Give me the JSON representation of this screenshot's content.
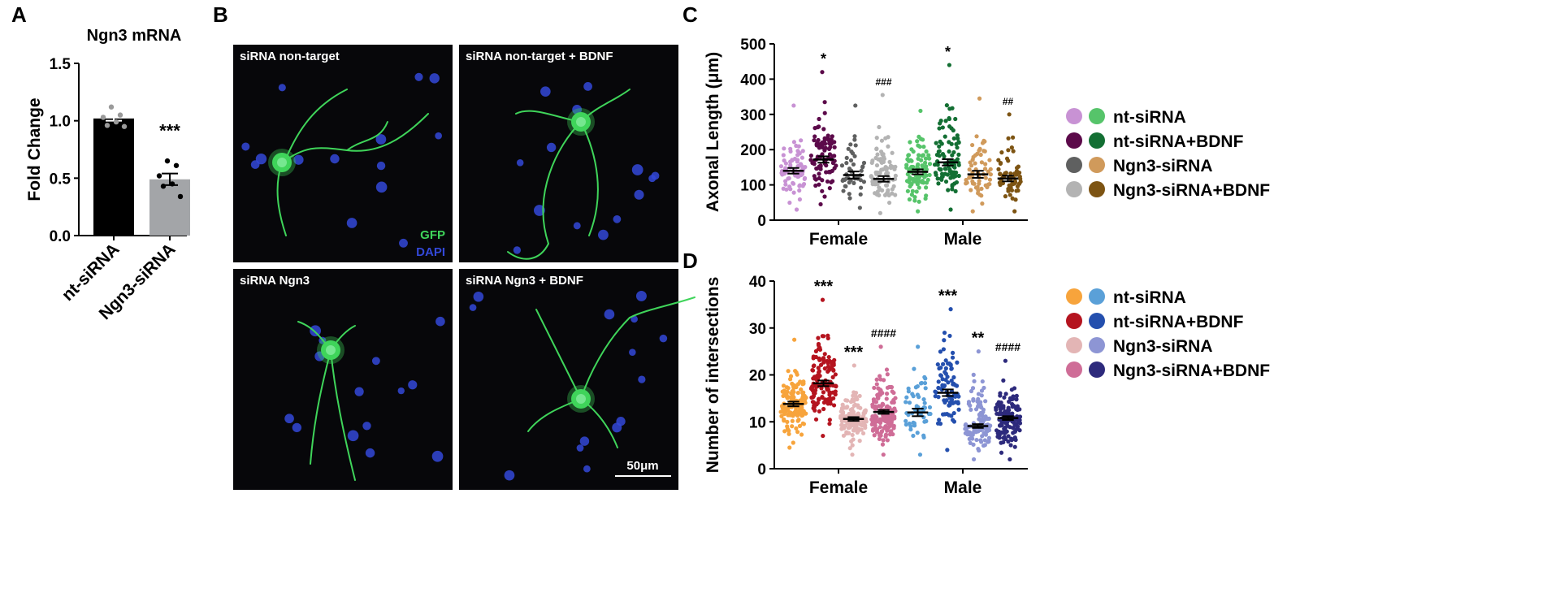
{
  "panels": {
    "a": "A",
    "b": "B",
    "c": "C",
    "d": "D"
  },
  "micrographs": {
    "tiles": [
      {
        "label": "siRNA non-target"
      },
      {
        "label": "siRNA non-target + BDNF"
      },
      {
        "label": "siRNA Ngn3"
      },
      {
        "label": "siRNA Ngn3 + BDNF"
      }
    ],
    "stain_gfp": "GFP",
    "stain_dapi": "DAPI",
    "scale_bar": "50μm",
    "colors": {
      "gfp": "#3fd45a",
      "dapi": "#3348d8",
      "background": "#07070a"
    }
  },
  "chart_data": [
    {
      "type": "bar",
      "title": "Ngn3 mRNA",
      "ylabel": "Fold Change",
      "categories": [
        "nt-siRNA",
        "Ngn3-siRNA"
      ],
      "values": [
        1.02,
        0.49
      ],
      "sem": [
        0.02,
        0.05
      ],
      "ylim": [
        0,
        1.5
      ],
      "yticks": [
        "0.0",
        "0.5",
        "1.0",
        "1.5"
      ],
      "points": [
        [
          1.12,
          1.05,
          1.03,
          0.99,
          0.96,
          0.95
        ],
        [
          0.65,
          0.61,
          0.52,
          0.45,
          0.43,
          0.34
        ]
      ],
      "annotations": [
        "",
        "***"
      ],
      "colors": [
        "#000000",
        "#a3a5a8"
      ]
    },
    {
      "type": "scatter",
      "ylabel": "Axonal  Length (μm)",
      "groups": [
        "Female",
        "Male"
      ],
      "ylim": [
        0,
        500
      ],
      "yticks": [
        "0",
        "100",
        "200",
        "300",
        "400",
        "500"
      ],
      "legend": [
        "nt-siRNA",
        "nt-siRNA+BDNF",
        "Ngn3-siRNA",
        "Ngn3-siRNA+BDNF"
      ],
      "series": [
        {
          "group": "Female",
          "mean": 140,
          "sem": 8,
          "max": 325,
          "min": 30,
          "n": 80,
          "color": "#c892d4",
          "annotation": ""
        },
        {
          "group": "Female",
          "mean": 172,
          "sem": 9,
          "max": 420,
          "min": 45,
          "n": 90,
          "color": "#5c0a4a",
          "annotation": "*"
        },
        {
          "group": "Female",
          "mean": 128,
          "sem": 10,
          "max": 325,
          "min": 35,
          "n": 45,
          "color": "#5f6060",
          "annotation": ""
        },
        {
          "group": "Female",
          "mean": 117,
          "sem": 8,
          "max": 355,
          "min": 20,
          "n": 85,
          "color": "#b3b3b3",
          "annotation": "###"
        },
        {
          "group": "Male",
          "mean": 137,
          "sem": 7,
          "max": 310,
          "min": 25,
          "n": 95,
          "color": "#56c46a",
          "annotation": ""
        },
        {
          "group": "Male",
          "mean": 164,
          "sem": 9,
          "max": 440,
          "min": 30,
          "n": 95,
          "color": "#136f33",
          "annotation": "*"
        },
        {
          "group": "Male",
          "mean": 130,
          "sem": 10,
          "max": 345,
          "min": 25,
          "n": 60,
          "color": "#d09a5b",
          "annotation": ""
        },
        {
          "group": "Male",
          "mean": 118,
          "sem": 8,
          "max": 300,
          "min": 25,
          "n": 60,
          "color": "#7d5413",
          "annotation": "##"
        }
      ]
    },
    {
      "type": "scatter",
      "ylabel": "Number of intersections",
      "groups": [
        "Female",
        "Male"
      ],
      "ylim": [
        0,
        40
      ],
      "yticks": [
        "0",
        "10",
        "20",
        "30",
        "40"
      ],
      "legend": [
        "nt-siRNA",
        "nt-siRNA+BDNF",
        "Ngn3-siRNA",
        "Ngn3-siRNA+BDNF"
      ],
      "series": [
        {
          "group": "Female",
          "mean": 13.8,
          "sem": 0.5,
          "max": 27.5,
          "min": 4.5,
          "n": 140,
          "color": "#f7a43c",
          "annotation": ""
        },
        {
          "group": "Female",
          "mean": 18.2,
          "sem": 0.6,
          "max": 36,
          "min": 7,
          "n": 130,
          "color": "#b5141f",
          "annotation": "***"
        },
        {
          "group": "Female",
          "mean": 10.6,
          "sem": 0.4,
          "max": 22,
          "min": 3,
          "n": 120,
          "color": "#e3b5b5",
          "annotation": "***"
        },
        {
          "group": "Female",
          "mean": 12.1,
          "sem": 0.4,
          "max": 26,
          "min": 3,
          "n": 140,
          "color": "#cf6d97",
          "annotation": "####"
        },
        {
          "group": "Male",
          "mean": 12.0,
          "sem": 0.8,
          "max": 26,
          "min": 3,
          "n": 55,
          "color": "#5aa0d8",
          "annotation": ""
        },
        {
          "group": "Male",
          "mean": 16.2,
          "sem": 0.7,
          "max": 34,
          "min": 4,
          "n": 85,
          "color": "#244fae",
          "annotation": "***"
        },
        {
          "group": "Male",
          "mean": 9.1,
          "sem": 0.4,
          "max": 25,
          "min": 2,
          "n": 110,
          "color": "#8d95d4",
          "annotation": "**"
        },
        {
          "group": "Male",
          "mean": 10.8,
          "sem": 0.4,
          "max": 23,
          "min": 2,
          "n": 130,
          "color": "#2d2a7c",
          "annotation": "####"
        }
      ]
    }
  ]
}
